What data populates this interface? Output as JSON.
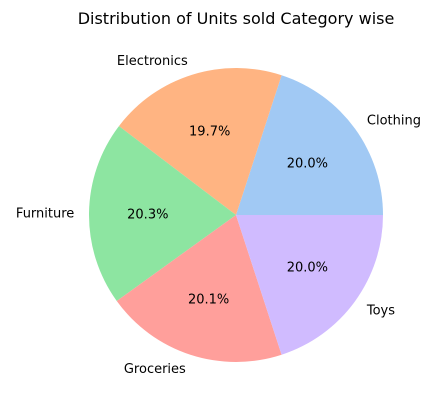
{
  "chart_data": {
    "type": "pie",
    "title": "Distribution of Units sold Category wise",
    "start_angle_deg": 0,
    "direction": "counterclockwise",
    "slices": [
      {
        "label": "Clothing",
        "value": 20.0,
        "pct_label": "20.0%",
        "color": "#a1c9f4"
      },
      {
        "label": "Electronics",
        "value": 19.7,
        "pct_label": "19.7%",
        "color": "#ffb482"
      },
      {
        "label": "Furniture",
        "value": 20.3,
        "pct_label": "20.3%",
        "color": "#8de5a1"
      },
      {
        "label": "Groceries",
        "value": 20.1,
        "pct_label": "20.1%",
        "color": "#ff9f9b"
      },
      {
        "label": "Toys",
        "value": 20.0,
        "pct_label": "20.0%",
        "color": "#d0bbff"
      }
    ]
  }
}
